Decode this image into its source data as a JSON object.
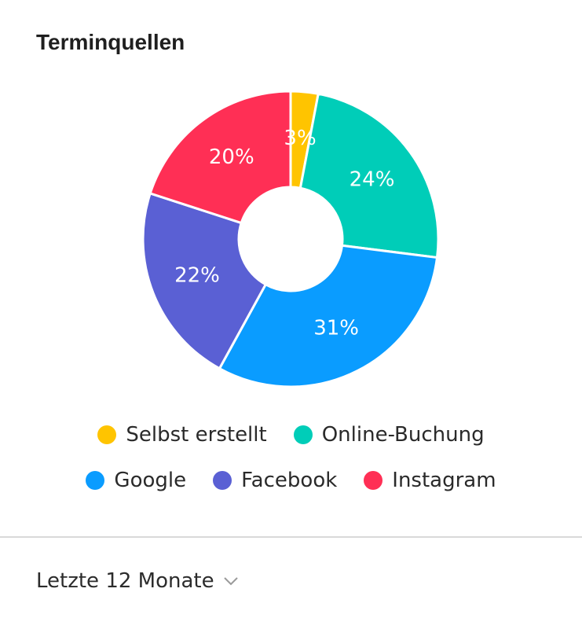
{
  "header": {
    "title": "Terminquellen"
  },
  "chart_data": {
    "type": "pie",
    "donut": true,
    "slices": [
      {
        "label": "Selbst erstellt",
        "value": 3,
        "value_label": "3%",
        "color": "#FFC400"
      },
      {
        "label": "Online-Buchung",
        "value": 24,
        "value_label": "24%",
        "color": "#00CDB8"
      },
      {
        "label": "Google",
        "value": 31,
        "value_label": "31%",
        "color": "#0A9CFF"
      },
      {
        "label": "Facebook",
        "value": 22,
        "value_label": "22%",
        "color": "#5A60D4"
      },
      {
        "label": "Instagram",
        "value": 20,
        "value_label": "20%",
        "color": "#FF2F55"
      }
    ],
    "legend_placement": "bottom"
  },
  "footer": {
    "period_label": "Letzte 12 Monate",
    "chevron_icon": "chevron-down-icon"
  }
}
